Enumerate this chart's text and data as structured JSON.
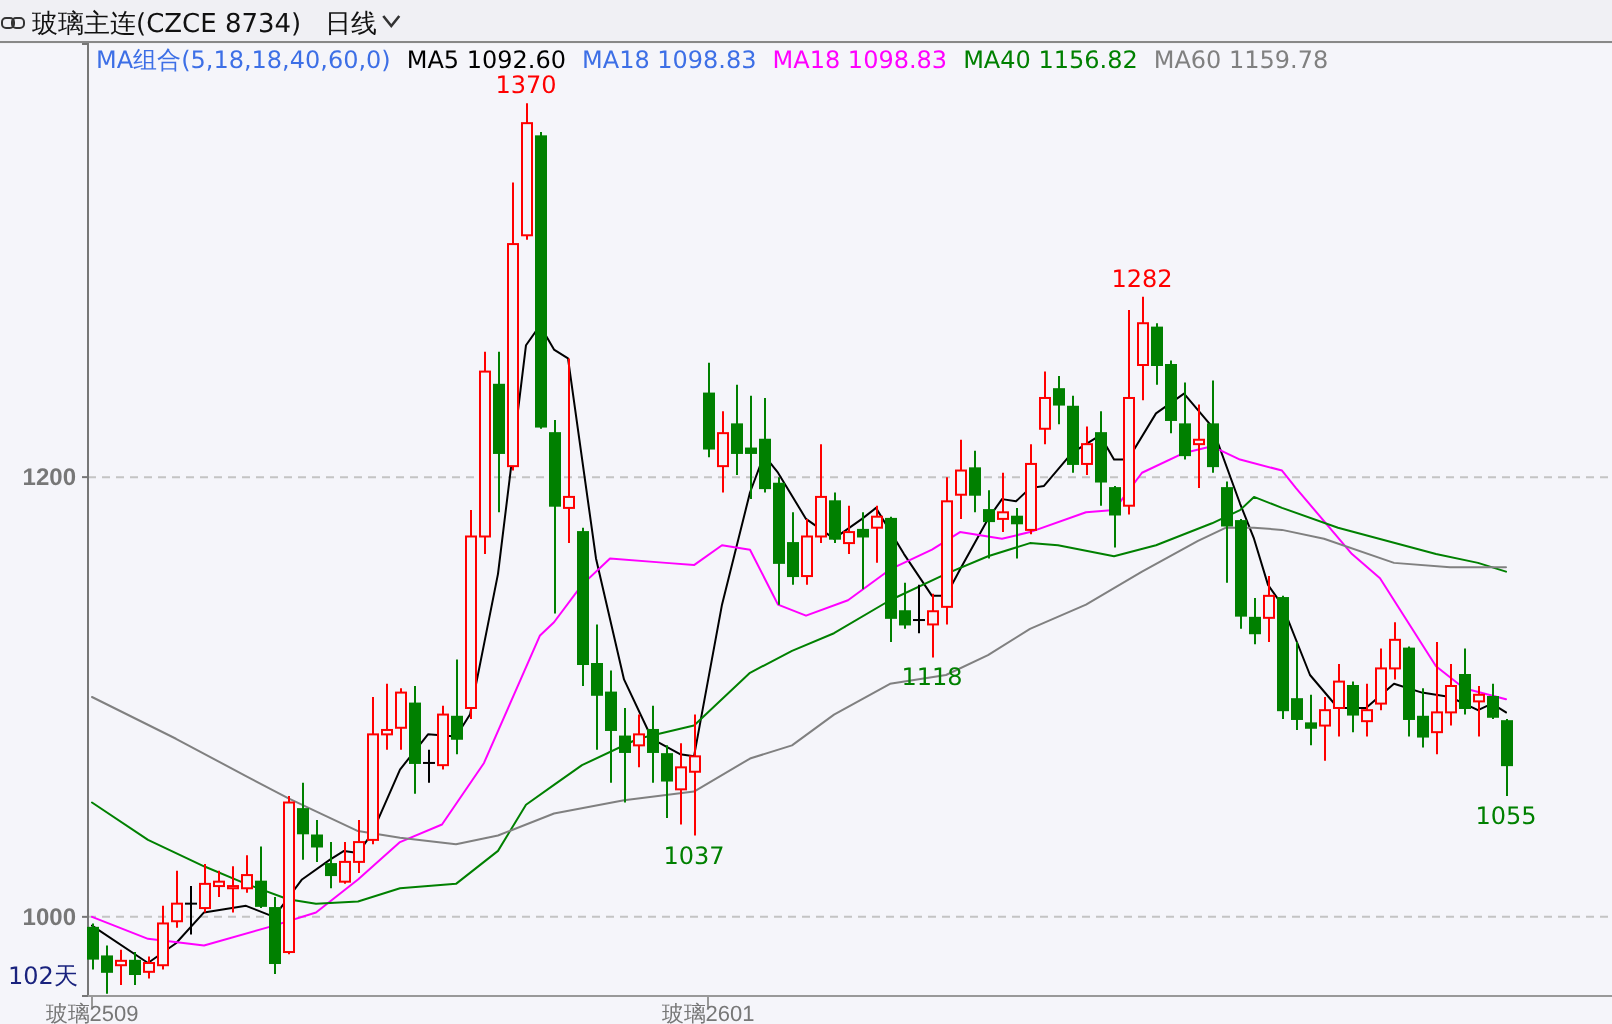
{
  "chart_data": {
    "type": "candlestick",
    "title": "玻璃主连(CZCE 8734)",
    "subtitle": "日线",
    "legend_title": "MA组合(5,18,18,40,60,0)",
    "legend": "top left",
    "grid": "y",
    "ylim": [
      964,
      1397
    ],
    "yticks": [
      1000,
      1200
    ],
    "categories": [
      "玻璃2509",
      null,
      null,
      null,
      null,
      null,
      null,
      null,
      null,
      null,
      null,
      null,
      null,
      null,
      null,
      null,
      null,
      null,
      null,
      null,
      null,
      null,
      null,
      null,
      null,
      null,
      null,
      null,
      null,
      null,
      null,
      null,
      null,
      null,
      null,
      null,
      null,
      null,
      null,
      null,
      null,
      null,
      null,
      null,
      "玻璃2601",
      null,
      null,
      null,
      null,
      null,
      null,
      null,
      null,
      null,
      null,
      null,
      null,
      null,
      null,
      null,
      null,
      null,
      null,
      null,
      null,
      null,
      null,
      null,
      null,
      null,
      null,
      null,
      null,
      null,
      null,
      null,
      null,
      null,
      null,
      null,
      null,
      null,
      null,
      null,
      null,
      null,
      null,
      null,
      null,
      null,
      null,
      null,
      null,
      null,
      null,
      null,
      null,
      null,
      null,
      null,
      null,
      null
    ],
    "annotations": [
      "MA18 1098.83",
      "102天",
      {
        "text": "1370",
        "y": 1370
      },
      {
        "text": "1037",
        "y": 1037
      },
      {
        "text": "1118",
        "y": 1118
      },
      {
        "text": "1282",
        "y": 1282
      },
      {
        "text": "1055",
        "y": 1055
      }
    ],
    "ohlc": [
      [
        995,
        997,
        976,
        981
      ],
      [
        982,
        987,
        965,
        975
      ],
      [
        978,
        985,
        969,
        980
      ],
      [
        980,
        984,
        969,
        974
      ],
      [
        975,
        982,
        972,
        979
      ],
      [
        978,
        1005,
        976,
        997
      ],
      [
        998,
        1021,
        995,
        1006
      ],
      [
        1006,
        1014,
        992,
        1006
      ],
      [
        1004,
        1024,
        1002,
        1015
      ],
      [
        1014,
        1021,
        1009,
        1016
      ],
      [
        1013,
        1023,
        1002,
        1014
      ],
      [
        1013,
        1028,
        1011,
        1019
      ],
      [
        1016,
        1032,
        1004,
        1005
      ],
      [
        1004,
        1009,
        974,
        979
      ],
      [
        984,
        1055,
        983,
        1052
      ],
      [
        1049,
        1061,
        1026,
        1038
      ],
      [
        1037,
        1044,
        1025,
        1032
      ],
      [
        1024,
        1034,
        1013,
        1019
      ],
      [
        1016,
        1034,
        1015,
        1025
      ],
      [
        1025,
        1044,
        1020,
        1034
      ],
      [
        1035,
        1100,
        1033,
        1083
      ],
      [
        1083,
        1106,
        1076,
        1085
      ],
      [
        1086,
        1104,
        1076,
        1102
      ],
      [
        1097,
        1105,
        1056,
        1070
      ],
      [
        1070,
        1076,
        1061,
        1070
      ],
      [
        1069,
        1096,
        1067,
        1092
      ],
      [
        1091,
        1117,
        1074,
        1081
      ],
      [
        1095,
        1185,
        1090,
        1173
      ],
      [
        1173,
        1257,
        1165,
        1248
      ],
      [
        1242,
        1257,
        1184,
        1211
      ],
      [
        1205,
        1334,
        1203,
        1306
      ],
      [
        1310,
        1370,
        1308,
        1361
      ],
      [
        1355,
        1357,
        1222,
        1223
      ],
      [
        1220,
        1226,
        1138,
        1187
      ],
      [
        1186,
        1254,
        1170,
        1191
      ],
      [
        1175,
        1177,
        1105,
        1115
      ],
      [
        1115,
        1133,
        1076,
        1101
      ],
      [
        1102,
        1112,
        1061,
        1085
      ],
      [
        1082,
        1095,
        1052,
        1075
      ],
      [
        1078,
        1092,
        1068,
        1083
      ],
      [
        1085,
        1096,
        1061,
        1075
      ],
      [
        1074,
        1078,
        1045,
        1062
      ],
      [
        1058,
        1079,
        1042,
        1068
      ],
      [
        1066,
        1092,
        1037,
        1073
      ],
      [
        1238,
        1252,
        1209,
        1213
      ],
      [
        1205,
        1230,
        1193,
        1220
      ],
      [
        1224,
        1242,
        1201,
        1211
      ],
      [
        1213,
        1237,
        1190,
        1211
      ],
      [
        1217,
        1236,
        1193,
        1195
      ],
      [
        1197,
        1200,
        1142,
        1161
      ],
      [
        1170,
        1184,
        1151,
        1155
      ],
      [
        1155,
        1181,
        1151,
        1173
      ],
      [
        1173,
        1215,
        1170,
        1191
      ],
      [
        1189,
        1193,
        1170,
        1172
      ],
      [
        1170,
        1187,
        1165,
        1175
      ],
      [
        1176,
        1184,
        1149,
        1173
      ],
      [
        1177,
        1187,
        1161,
        1182
      ],
      [
        1181,
        1182,
        1125,
        1136
      ],
      [
        1139,
        1152,
        1131,
        1133
      ],
      [
        1135,
        1151,
        1129,
        1135
      ],
      [
        1133,
        1147,
        1118,
        1139
      ],
      [
        1141,
        1200,
        1133,
        1189
      ],
      [
        1192,
        1217,
        1181,
        1203
      ],
      [
        1204,
        1212,
        1184,
        1192
      ],
      [
        1185,
        1194,
        1163,
        1180
      ],
      [
        1181,
        1202,
        1175,
        1184
      ],
      [
        1182,
        1186,
        1163,
        1179
      ],
      [
        1176,
        1215,
        1174,
        1206
      ],
      [
        1222,
        1248,
        1215,
        1236
      ],
      [
        1240,
        1246,
        1224,
        1233
      ],
      [
        1232,
        1237,
        1202,
        1206
      ],
      [
        1206,
        1223,
        1201,
        1215
      ],
      [
        1220,
        1230,
        1187,
        1198
      ],
      [
        1195,
        1196,
        1168,
        1183
      ],
      [
        1187,
        1276,
        1183,
        1236
      ],
      [
        1251,
        1282,
        1235,
        1270
      ],
      [
        1268,
        1270,
        1242,
        1251
      ],
      [
        1251,
        1253,
        1220,
        1226
      ],
      [
        1224,
        1243,
        1208,
        1210
      ],
      [
        1215,
        1233,
        1195,
        1217
      ],
      [
        1224,
        1244,
        1202,
        1205
      ],
      [
        1195,
        1198,
        1152,
        1178
      ],
      [
        1180,
        1181,
        1131,
        1137
      ],
      [
        1136,
        1145,
        1124,
        1129
      ],
      [
        1136,
        1155,
        1125,
        1146
      ],
      [
        1145,
        1146,
        1090,
        1094
      ],
      [
        1099,
        1125,
        1085,
        1090
      ],
      [
        1088,
        1101,
        1078,
        1086
      ],
      [
        1087,
        1100,
        1071,
        1094
      ],
      [
        1095,
        1115,
        1082,
        1107
      ],
      [
        1105,
        1107,
        1084,
        1092
      ],
      [
        1089,
        1106,
        1082,
        1094
      ],
      [
        1097,
        1122,
        1094,
        1113
      ],
      [
        1113,
        1134,
        1108,
        1126
      ],
      [
        1122,
        1123,
        1082,
        1090
      ],
      [
        1091,
        1104,
        1077,
        1082
      ],
      [
        1084,
        1125,
        1074,
        1093
      ],
      [
        1093,
        1115,
        1087,
        1105
      ],
      [
        1110,
        1122,
        1092,
        1095
      ],
      [
        1098,
        1105,
        1082,
        1101
      ],
      [
        1100,
        1106,
        1090,
        1091
      ],
      [
        1089,
        1090,
        1055,
        1069
      ]
    ],
    "series": [
      {
        "type": "line",
        "name": "MA5 1092.60",
        "color": "#000000",
        "values": [
          996,
          null,
          null,
          null,
          979,
          null,
          988,
          null,
          1002,
          null,
          null,
          1005,
          null,
          1000,
          null,
          1017,
          null,
          1026,
          1030,
          1029,
          1038,
          null,
          1067,
          null,
          1083,
          null,
          1082,
          1092,
          null,
          1156,
          null,
          1260,
          1269,
          1258,
          1254,
          null,
          1163,
          null,
          1108,
          null,
          1081,
          null,
          1074,
          1073,
          null,
          1142,
          null,
          1193,
          1210,
          1202,
          null,
          1181,
          null,
          1172,
          null,
          1181,
          1186,
          null,
          1165,
          null,
          1146,
          1146,
          1158,
          null,
          1181,
          1190,
          1189,
          1195,
          1196,
          null,
          1211,
          null,
          1219,
          1208,
          1208,
          null,
          1229,
          null,
          1238,
          null,
          1223,
          null,
          1188,
          1172,
          1151,
          1142,
          null,
          1110,
          null,
          1095,
          null,
          1095,
          null,
          1106,
          null,
          1102,
          null,
          1100,
          null,
          1094,
          1097,
          1093
        ]
      },
      {
        "type": "line",
        "name": "MA18 1098.83",
        "color": "#ff00ff",
        "values": [
          1000,
          null,
          null,
          null,
          990,
          null,
          null,
          null,
          987,
          null,
          null,
          null,
          null,
          996,
          null,
          null,
          1002,
          null,
          null,
          1017,
          null,
          null,
          1034,
          null,
          null,
          1042,
          null,
          null,
          1070,
          null,
          1099,
          null,
          1128,
          1134,
          null,
          1151,
          null,
          1163,
          null,
          null,
          null,
          1161,
          null,
          1160,
          null,
          1169,
          null,
          1167,
          null,
          1142,
          null,
          1137,
          null,
          null,
          1144,
          null,
          null,
          1158,
          null,
          null,
          1167,
          null,
          1175,
          null,
          null,
          1172,
          null,
          1175,
          null,
          null,
          null,
          1184,
          null,
          1185,
          null,
          1202,
          null,
          null,
          1211,
          null,
          1214,
          null,
          1208,
          null,
          null,
          1203,
          1195,
          null,
          null,
          null,
          1165,
          null,
          1154,
          null,
          null,
          null,
          1114,
          null,
          1104,
          null,
          null,
          1099
        ]
      },
      {
        "type": "line",
        "name": "MA40 1156.82",
        "color": "#008000",
        "values": [
          1052,
          null,
          null,
          null,
          1035,
          null,
          null,
          null,
          1023,
          null,
          null,
          1015,
          null,
          null,
          1008,
          null,
          1006,
          null,
          null,
          1007,
          null,
          null,
          1013,
          null,
          null,
          null,
          1015,
          null,
          null,
          1030,
          null,
          1051,
          null,
          1060,
          null,
          1069,
          null,
          null,
          null,
          1081,
          null,
          null,
          null,
          1087,
          null,
          null,
          null,
          1111,
          null,
          null,
          1121,
          null,
          null,
          1129,
          null,
          null,
          null,
          1144,
          null,
          null,
          null,
          1156,
          null,
          null,
          1164,
          null,
          null,
          1170,
          null,
          1169,
          null,
          null,
          null,
          1164,
          null,
          null,
          1169,
          null,
          null,
          null,
          1179,
          null,
          1185,
          1191,
          null,
          1186,
          null,
          null,
          null,
          1177,
          null,
          null,
          null,
          null,
          null,
          null,
          1165,
          null,
          null,
          1161,
          null,
          1157
        ]
      },
      {
        "type": "line",
        "name": "MA60 1159.78",
        "color": "#808080",
        "values": [
          1100,
          null,
          null,
          null,
          null,
          null,
          1081,
          null,
          null,
          null,
          null,
          1064,
          null,
          null,
          1054,
          null,
          1048,
          null,
          null,
          1039,
          null,
          null,
          1036,
          null,
          null,
          null,
          1033,
          null,
          null,
          1037,
          null,
          null,
          null,
          1047,
          null,
          null,
          null,
          null,
          1053,
          null,
          null,
          null,
          null,
          1057,
          null,
          null,
          null,
          1072,
          null,
          null,
          1078,
          null,
          null,
          1092,
          null,
          null,
          null,
          1106,
          null,
          null,
          null,
          1110,
          null,
          null,
          1119,
          null,
          null,
          1131,
          null,
          null,
          null,
          1142,
          null,
          null,
          null,
          1157,
          null,
          null,
          null,
          1171,
          null,
          1177,
          null,
          1177,
          null,
          1176,
          null,
          null,
          1172,
          null,
          null,
          null,
          null,
          1161,
          null,
          null,
          null,
          1159,
          null,
          null,
          null,
          1159
        ]
      }
    ]
  }
}
